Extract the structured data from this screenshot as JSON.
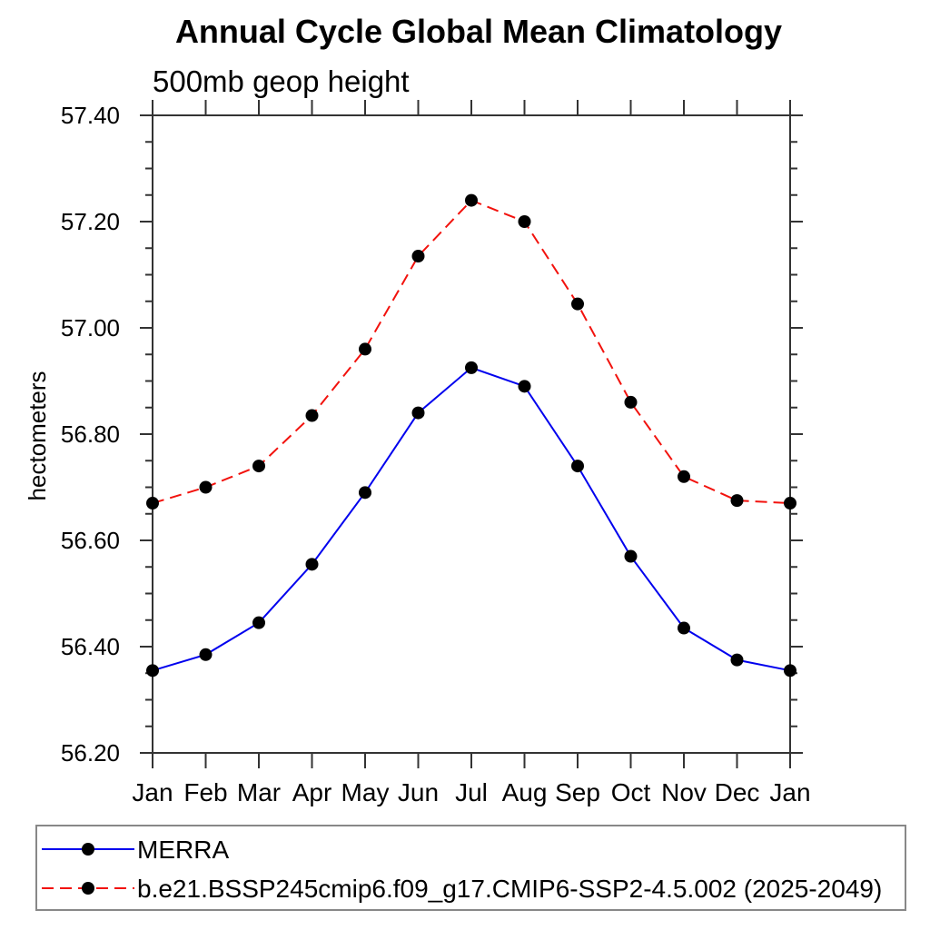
{
  "chart_data": {
    "type": "line",
    "title": "Annual Cycle Global Mean Climatology",
    "subtitle": "500mb geop height",
    "ylabel": "hectometers",
    "xlabel": "",
    "categories": [
      "Jan",
      "Feb",
      "Mar",
      "Apr",
      "May",
      "Jun",
      "Jul",
      "Aug",
      "Sep",
      "Oct",
      "Nov",
      "Dec",
      "Jan"
    ],
    "ylim": [
      56.2,
      57.4
    ],
    "ytick_major": 0.2,
    "ytick_minor": 0.05,
    "grid": false,
    "legend_position": "bottom",
    "axis_color": "#333333",
    "marker_color": "#000000",
    "series": [
      {
        "name": "MERRA",
        "color": "#0000ee",
        "style": "solid",
        "marker": "filled-circle",
        "values": [
          56.355,
          56.385,
          56.445,
          56.555,
          56.69,
          56.84,
          56.925,
          56.89,
          56.74,
          56.57,
          56.435,
          56.375,
          56.355
        ]
      },
      {
        "name": "b.e21.BSSP245cmip6.f09_g17.CMIP6-SSP2-4.5.002 (2025-2049)",
        "color": "#f2120d",
        "style": "dashed",
        "marker": "filled-circle",
        "values": [
          56.67,
          56.7,
          56.74,
          56.835,
          56.96,
          57.135,
          57.24,
          57.2,
          57.045,
          56.86,
          56.72,
          56.675,
          56.67
        ]
      }
    ]
  }
}
